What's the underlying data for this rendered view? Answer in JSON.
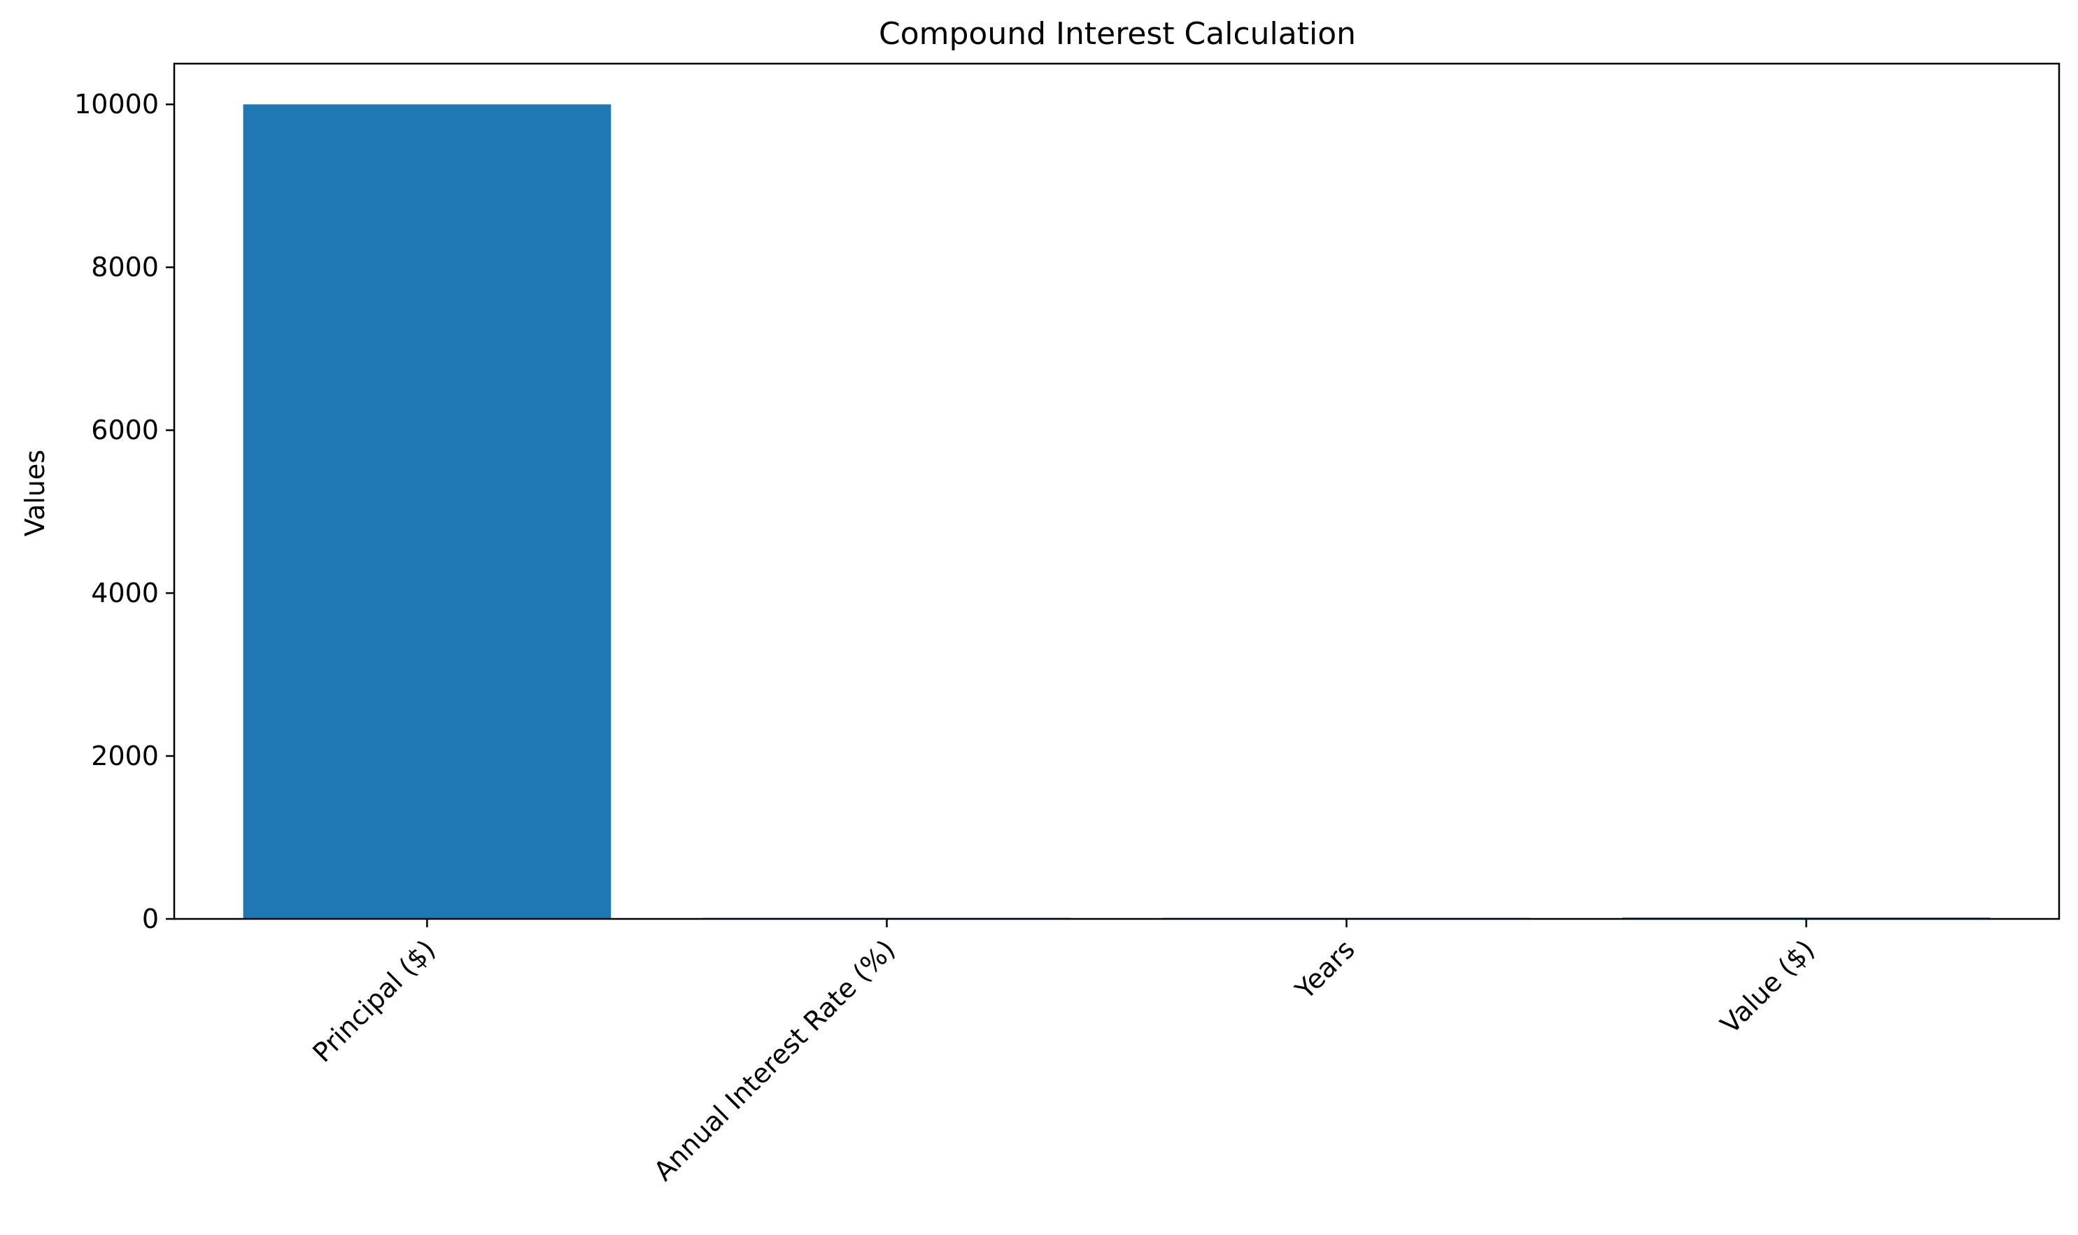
{
  "chart_data": {
    "type": "bar",
    "title": "Compound Interest Calculation",
    "xlabel": "",
    "ylabel": "Values",
    "categories": [
      "Principal ($)",
      "Annual Interest Rate (%)",
      "Years",
      "Value ($)"
    ],
    "values": [
      10000,
      5,
      10,
      16.29
    ],
    "ylim": [
      0,
      10500
    ],
    "yticks": [
      0,
      2000,
      4000,
      6000,
      8000,
      10000
    ],
    "grid": false,
    "legend": "none",
    "bar_color": "#1f77b4"
  }
}
